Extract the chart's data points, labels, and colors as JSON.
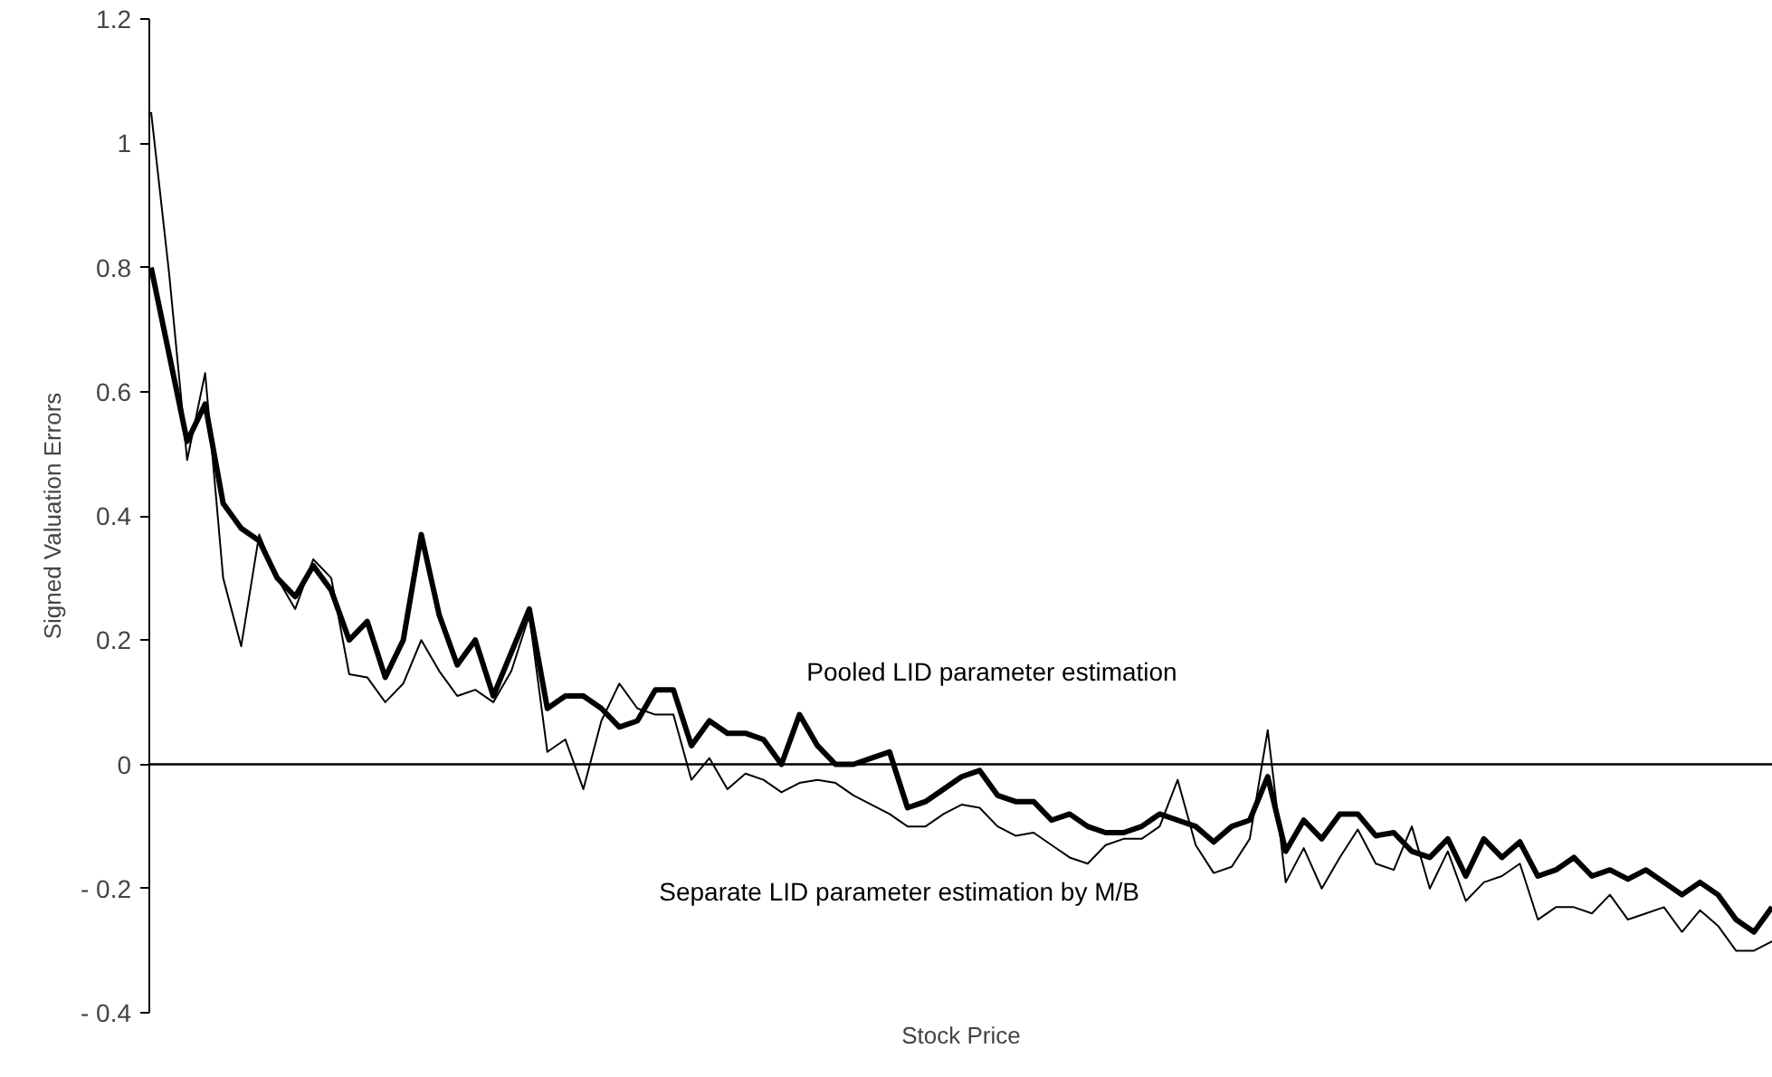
{
  "chart_data": {
    "type": "line",
    "xlabel": "Stock Price",
    "ylabel": "Signed Valuation Errors",
    "categories": [
      null,
      null,
      null,
      null,
      null,
      null,
      null,
      null,
      null,
      null,
      null,
      null,
      null,
      null,
      null,
      null,
      null,
      null,
      null,
      null,
      null,
      null,
      null,
      null,
      null,
      null,
      null,
      null,
      null,
      null,
      null,
      null,
      null,
      null,
      null,
      null,
      null,
      null,
      null,
      null,
      null,
      null,
      null,
      null,
      null,
      null,
      null,
      null,
      null,
      null,
      null,
      null,
      null,
      null,
      null,
      null,
      null,
      null,
      null,
      null,
      null,
      null,
      null,
      null,
      null,
      null,
      null,
      null,
      null,
      null,
      null,
      null,
      null,
      null,
      null,
      null,
      null,
      null,
      null,
      null,
      null,
      null,
      null,
      null,
      null,
      null,
      null,
      null,
      null,
      null,
      null
    ],
    "series": [
      {
        "name": "Pooled LID parameter estimation",
        "color": "#000000",
        "values": [
          0.8,
          0.66,
          0.52,
          0.58,
          0.42,
          0.38,
          0.36,
          0.3,
          0.27,
          0.32,
          0.28,
          0.2,
          0.23,
          0.14,
          0.2,
          0.37,
          0.24,
          0.16,
          0.2,
          0.11,
          0.18,
          0.25,
          0.09,
          0.11,
          0.11,
          0.09,
          0.06,
          0.07,
          0.12,
          0.12,
          0.03,
          0.07,
          0.05,
          0.05,
          0.04,
          0.0,
          0.08,
          0.03,
          0.0,
          0.0,
          0.01,
          0.02,
          -0.07,
          -0.06,
          -0.04,
          -0.02,
          -0.01,
          -0.05,
          -0.06,
          -0.06,
          -0.09,
          -0.08,
          -0.1,
          -0.11,
          -0.11,
          -0.1,
          -0.08,
          -0.09,
          -0.1,
          -0.125,
          -0.1,
          -0.09,
          -0.02,
          -0.14,
          -0.09,
          -0.12,
          -0.08,
          -0.08,
          -0.115,
          -0.11,
          -0.14,
          -0.15,
          -0.12,
          -0.18,
          -0.12,
          -0.15,
          -0.125,
          -0.18,
          -0.17,
          -0.15,
          -0.18,
          -0.17,
          -0.185,
          -0.17,
          -0.19,
          -0.21,
          -0.19,
          -0.21,
          -0.25,
          -0.27,
          -0.23
        ]
      },
      {
        "name": "Separate LID parameter estimation by M/B",
        "color": "#000000",
        "values": [
          1.05,
          0.79,
          0.49,
          0.63,
          0.3,
          0.19,
          0.37,
          0.3,
          0.25,
          0.33,
          0.3,
          0.145,
          0.14,
          0.1,
          0.13,
          0.2,
          0.15,
          0.11,
          0.12,
          0.1,
          0.15,
          0.24,
          0.02,
          0.04,
          -0.04,
          0.07,
          0.13,
          0.09,
          0.08,
          0.08,
          -0.025,
          0.01,
          -0.04,
          -0.015,
          -0.025,
          -0.045,
          -0.03,
          -0.025,
          -0.03,
          -0.05,
          -0.065,
          -0.08,
          -0.1,
          -0.1,
          -0.08,
          -0.065,
          -0.07,
          -0.1,
          -0.115,
          -0.11,
          -0.13,
          -0.15,
          -0.16,
          -0.13,
          -0.12,
          -0.12,
          -0.1,
          -0.025,
          -0.13,
          -0.175,
          -0.165,
          -0.12,
          0.055,
          -0.19,
          -0.135,
          -0.2,
          -0.15,
          -0.105,
          -0.16,
          -0.17,
          -0.1,
          -0.2,
          -0.14,
          -0.22,
          -0.19,
          -0.18,
          -0.16,
          -0.25,
          -0.23,
          -0.23,
          -0.24,
          -0.21,
          -0.25,
          -0.24,
          -0.23,
          -0.27,
          -0.235,
          -0.26,
          -0.3,
          -0.3,
          -0.285
        ]
      }
    ],
    "ylim": [
      -0.4,
      1.2
    ],
    "yticks": [
      1.2,
      1,
      0.8,
      0.6,
      0.4,
      0.2,
      0,
      {
        "value": -0.2,
        "label": "- 0.2"
      },
      {
        "value": -0.4,
        "label": "- 0.4"
      }
    ],
    "ref_lines": [
      {
        "axis": "y",
        "value": 0,
        "color": "#000000"
      }
    ],
    "tick_labels": "y",
    "grid": false,
    "marker": "none",
    "line_style": "solid"
  }
}
